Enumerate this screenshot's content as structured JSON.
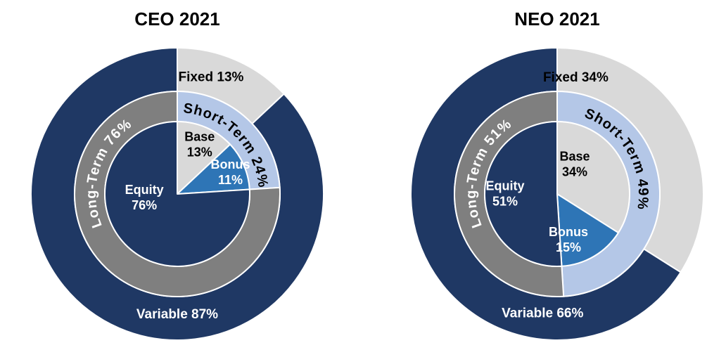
{
  "page": {
    "background_color": "#FFFFFF"
  },
  "chart_data": [
    {
      "type": "pie",
      "subtype": "concentric-donut",
      "title": "CEO 2021",
      "unit": "%",
      "legend": "none",
      "rings": [
        {
          "name": "outer-ring",
          "segments": [
            {
              "label": "Fixed",
              "value": 13,
              "color": "#D9D9D9",
              "text_color": "#000000"
            },
            {
              "label": "Variable",
              "value": 87,
              "color": "#1F3864",
              "text_color": "#FFFFFF"
            }
          ]
        },
        {
          "name": "middle-ring",
          "segments": [
            {
              "label": "Short-Term",
              "value": 24,
              "color": "#B4C7E7",
              "text_color": "#000000"
            },
            {
              "label": "Long-Term",
              "value": 76,
              "color": "#7F7F7F",
              "text_color": "#FFFFFF"
            }
          ]
        },
        {
          "name": "inner-pie",
          "segments": [
            {
              "label": "Base",
              "value": 13,
              "color": "#D9D9D9",
              "text_color": "#000000"
            },
            {
              "label": "Bonus",
              "value": 11,
              "color": "#2E75B6",
              "text_color": "#FFFFFF"
            },
            {
              "label": "Equity",
              "value": 76,
              "color": "#1F3864",
              "text_color": "#FFFFFF"
            }
          ]
        }
      ]
    },
    {
      "type": "pie",
      "subtype": "concentric-donut",
      "title": "NEO 2021",
      "unit": "%",
      "legend": "none",
      "rings": [
        {
          "name": "outer-ring",
          "segments": [
            {
              "label": "Fixed",
              "value": 34,
              "color": "#D9D9D9",
              "text_color": "#000000"
            },
            {
              "label": "Variable",
              "value": 66,
              "color": "#1F3864",
              "text_color": "#FFFFFF"
            }
          ]
        },
        {
          "name": "middle-ring",
          "segments": [
            {
              "label": "Short-Term",
              "value": 49,
              "color": "#B4C7E7",
              "text_color": "#000000"
            },
            {
              "label": "Long-Term",
              "value": 51,
              "color": "#7F7F7F",
              "text_color": "#FFFFFF"
            }
          ]
        },
        {
          "name": "inner-pie",
          "segments": [
            {
              "label": "Base",
              "value": 34,
              "color": "#D9D9D9",
              "text_color": "#000000"
            },
            {
              "label": "Bonus",
              "value": 15,
              "color": "#2E75B6",
              "text_color": "#FFFFFF"
            },
            {
              "label": "Equity",
              "value": 51,
              "color": "#1F3864",
              "text_color": "#FFFFFF"
            }
          ]
        }
      ]
    }
  ]
}
